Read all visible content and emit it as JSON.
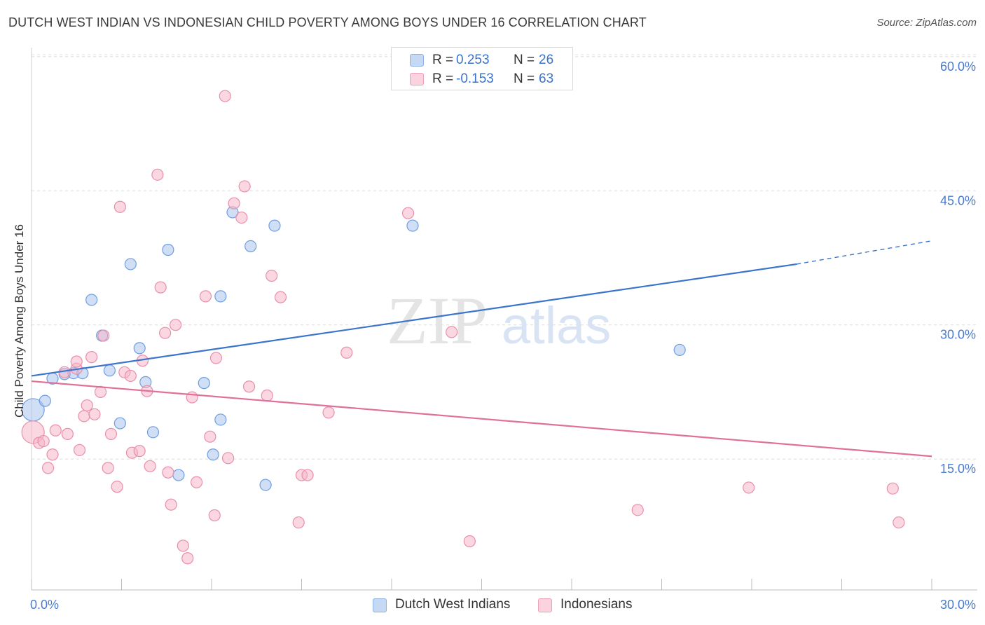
{
  "header": {
    "title": "DUTCH WEST INDIAN VS INDONESIAN CHILD POVERTY AMONG BOYS UNDER 16 CORRELATION CHART",
    "source": "Source: ZipAtlas.com"
  },
  "watermark": {
    "zip": "ZIP",
    "atlas": "atlas"
  },
  "legend": {
    "rows": [
      {
        "r_label": "R =",
        "r_value": "0.253",
        "n_label": "N =",
        "n_value": "26",
        "color": "#a9c4ee"
      },
      {
        "r_label": "R =",
        "r_value": "-0.153",
        "n_label": "N =",
        "n_value": "63",
        "color": "#f5b7c9"
      }
    ]
  },
  "bottom_legend": {
    "items": [
      {
        "label": "Dutch West Indians",
        "color": "#a9c4ee"
      },
      {
        "label": "Indonesians",
        "color": "#f5b7c9"
      }
    ]
  },
  "chart_data": {
    "type": "scatter",
    "title": "DUTCH WEST INDIAN VS INDONESIAN CHILD POVERTY AMONG BOYS UNDER 16 CORRELATION CHART",
    "xlabel": "",
    "ylabel": "Child Poverty Among Boys Under 16",
    "xlim": [
      0,
      30
    ],
    "ylim": [
      1.5,
      63
    ],
    "x_tick_labels": [
      "0.0%",
      "30.0%"
    ],
    "y_ticks": [
      15,
      30,
      45,
      60
    ],
    "y_tick_labels": [
      "15.0%",
      "30.0%",
      "45.0%",
      "60.0%"
    ],
    "grid": true,
    "legend_position": "top-center",
    "series": [
      {
        "name": "Dutch West Indians",
        "color": "#a9c4ee",
        "stroke": "#6f9de0",
        "line_color": "#3b74cc",
        "trend": {
          "x": [
            0,
            25.5
          ],
          "y": [
            24.3,
            36.8
          ],
          "dashed_to": [
            30,
            39.4
          ]
        },
        "points": [
          {
            "x": 0.05,
            "y": 20.5,
            "big": true
          },
          {
            "x": 0.45,
            "y": 21.5
          },
          {
            "x": 0.7,
            "y": 24.0
          },
          {
            "x": 1.1,
            "y": 24.5
          },
          {
            "x": 1.4,
            "y": 24.6
          },
          {
            "x": 1.7,
            "y": 24.6
          },
          {
            "x": 2.0,
            "y": 32.8
          },
          {
            "x": 2.35,
            "y": 28.8
          },
          {
            "x": 2.6,
            "y": 24.9
          },
          {
            "x": 2.95,
            "y": 19.0
          },
          {
            "x": 3.3,
            "y": 36.8
          },
          {
            "x": 3.6,
            "y": 27.4
          },
          {
            "x": 3.8,
            "y": 23.6
          },
          {
            "x": 4.05,
            "y": 18.0
          },
          {
            "x": 4.55,
            "y": 38.4
          },
          {
            "x": 4.9,
            "y": 13.2
          },
          {
            "x": 5.75,
            "y": 23.5
          },
          {
            "x": 6.05,
            "y": 15.5
          },
          {
            "x": 6.3,
            "y": 19.4
          },
          {
            "x": 6.3,
            "y": 33.2
          },
          {
            "x": 6.7,
            "y": 42.6
          },
          {
            "x": 7.3,
            "y": 38.8
          },
          {
            "x": 7.8,
            "y": 12.1
          },
          {
            "x": 8.1,
            "y": 41.1
          },
          {
            "x": 12.7,
            "y": 41.1
          },
          {
            "x": 21.6,
            "y": 27.2
          }
        ]
      },
      {
        "name": "Indonesians",
        "color": "#f5b7c9",
        "stroke": "#e98fab",
        "line_color": "#e0709a",
        "trend": {
          "x": [
            0,
            30
          ],
          "y": [
            23.7,
            15.3
          ]
        },
        "points": [
          {
            "x": 0.05,
            "y": 18.0,
            "big": true
          },
          {
            "x": 0.25,
            "y": 16.8
          },
          {
            "x": 0.4,
            "y": 17.0
          },
          {
            "x": 0.55,
            "y": 14.0
          },
          {
            "x": 0.7,
            "y": 15.5
          },
          {
            "x": 0.8,
            "y": 18.2
          },
          {
            "x": 1.1,
            "y": 24.7
          },
          {
            "x": 1.5,
            "y": 25.1
          },
          {
            "x": 1.2,
            "y": 17.8
          },
          {
            "x": 1.5,
            "y": 25.9
          },
          {
            "x": 1.6,
            "y": 16.0
          },
          {
            "x": 1.75,
            "y": 19.8
          },
          {
            "x": 1.85,
            "y": 21.0
          },
          {
            "x": 2.0,
            "y": 26.4
          },
          {
            "x": 2.1,
            "y": 20.0
          },
          {
            "x": 2.3,
            "y": 22.5
          },
          {
            "x": 2.4,
            "y": 28.8
          },
          {
            "x": 2.55,
            "y": 14.0
          },
          {
            "x": 2.65,
            "y": 17.8
          },
          {
            "x": 2.85,
            "y": 11.9
          },
          {
            "x": 2.95,
            "y": 43.2
          },
          {
            "x": 3.1,
            "y": 24.7
          },
          {
            "x": 3.3,
            "y": 24.3
          },
          {
            "x": 3.35,
            "y": 15.7
          },
          {
            "x": 3.6,
            "y": 15.9
          },
          {
            "x": 3.7,
            "y": 26.0
          },
          {
            "x": 3.85,
            "y": 22.6
          },
          {
            "x": 3.95,
            "y": 14.2
          },
          {
            "x": 4.2,
            "y": 46.8
          },
          {
            "x": 4.3,
            "y": 34.2
          },
          {
            "x": 4.45,
            "y": 29.1
          },
          {
            "x": 4.55,
            "y": 13.5
          },
          {
            "x": 4.65,
            "y": 9.9
          },
          {
            "x": 4.8,
            "y": 30.0
          },
          {
            "x": 5.05,
            "y": 5.3
          },
          {
            "x": 5.2,
            "y": 3.9
          },
          {
            "x": 5.35,
            "y": 21.9
          },
          {
            "x": 5.5,
            "y": 12.4
          },
          {
            "x": 5.8,
            "y": 33.2
          },
          {
            "x": 5.95,
            "y": 17.5
          },
          {
            "x": 6.1,
            "y": 8.7
          },
          {
            "x": 6.15,
            "y": 26.3
          },
          {
            "x": 6.45,
            "y": 55.6
          },
          {
            "x": 6.55,
            "y": 15.1
          },
          {
            "x": 6.75,
            "y": 43.6
          },
          {
            "x": 7.0,
            "y": 42.0
          },
          {
            "x": 7.1,
            "y": 45.5
          },
          {
            "x": 7.25,
            "y": 23.1
          },
          {
            "x": 7.85,
            "y": 22.1
          },
          {
            "x": 8.0,
            "y": 35.5
          },
          {
            "x": 8.3,
            "y": 33.1
          },
          {
            "x": 8.9,
            "y": 7.9
          },
          {
            "x": 9.0,
            "y": 13.2
          },
          {
            "x": 9.2,
            "y": 13.2
          },
          {
            "x": 9.9,
            "y": 20.2
          },
          {
            "x": 10.5,
            "y": 26.9
          },
          {
            "x": 12.55,
            "y": 42.5
          },
          {
            "x": 14.0,
            "y": 29.2
          },
          {
            "x": 14.6,
            "y": 5.8
          },
          {
            "x": 20.2,
            "y": 9.3
          },
          {
            "x": 23.9,
            "y": 11.8
          },
          {
            "x": 28.7,
            "y": 11.7
          },
          {
            "x": 28.9,
            "y": 7.9
          }
        ]
      }
    ]
  }
}
